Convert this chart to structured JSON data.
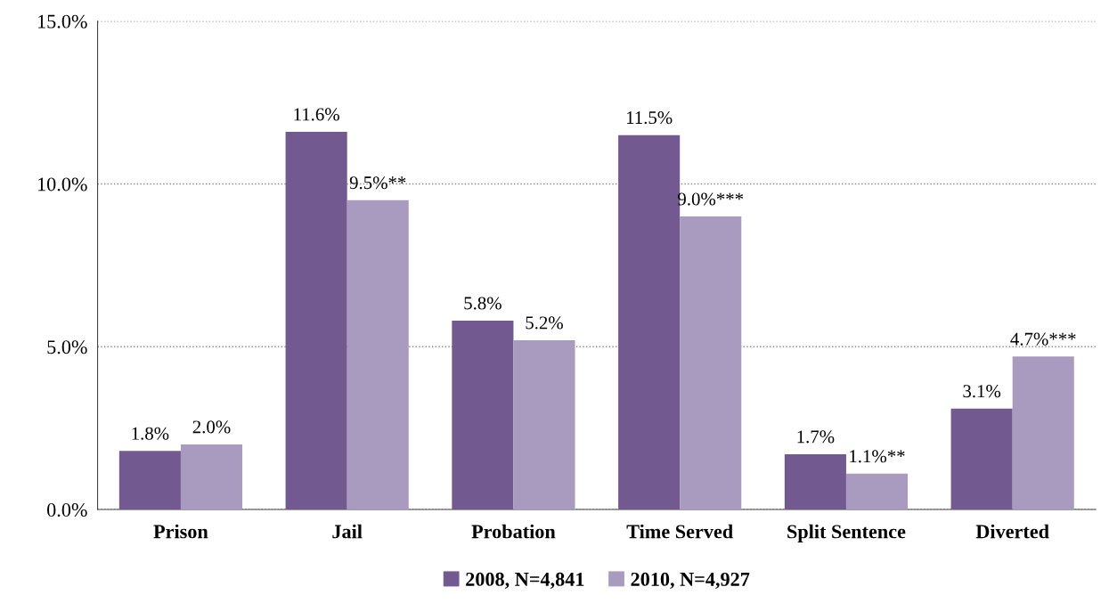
{
  "chart_data": {
    "type": "bar",
    "categories": [
      "Prison",
      "Jail",
      "Probation",
      "Time Served",
      "Split Sentence",
      "Diverted"
    ],
    "series": [
      {
        "name": "2008, N=4,841",
        "color": "#72598f",
        "values": [
          1.8,
          11.6,
          5.8,
          11.5,
          1.7,
          3.1
        ],
        "value_labels": [
          "1.8%",
          "11.6%",
          "5.8%",
          "11.5%",
          "1.7%",
          "3.1%"
        ]
      },
      {
        "name": "2010, N=4,927",
        "color": "#a99bbf",
        "values": [
          2.0,
          9.5,
          5.2,
          9.0,
          1.1,
          4.7
        ],
        "value_labels": [
          "2.0%",
          "9.5%**",
          "5.2%",
          "9.0%***",
          "1.1%**",
          "4.7%***"
        ]
      }
    ],
    "ylim": [
      0,
      15
    ],
    "yticks": [
      {
        "value": 0,
        "label": "0.0%"
      },
      {
        "value": 5,
        "label": "5.0%"
      },
      {
        "value": 10,
        "label": "10.0%"
      },
      {
        "value": 15,
        "label": "15.0%"
      }
    ],
    "grid": "y",
    "legend": "bottom"
  }
}
